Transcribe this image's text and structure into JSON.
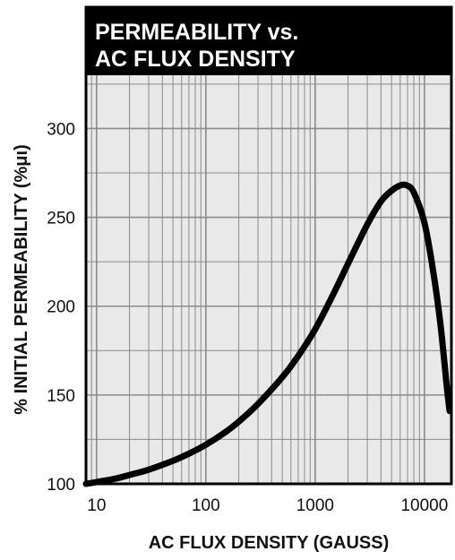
{
  "chart_data": {
    "type": "line",
    "title_lines": [
      "PERMEABILITY vs.",
      "AC FLUX DENSITY"
    ],
    "xlabel": "AC FLUX DENSITY (GAUSS)",
    "ylabel": "% INITIAL PERMEABILITY (%μι)",
    "x_scale": "log",
    "xlim": [
      8,
      17000
    ],
    "ylim": [
      100,
      330
    ],
    "x_ticks": [
      10,
      100,
      1000,
      10000
    ],
    "x_tick_labels": [
      "10",
      "100",
      "1000",
      "10000"
    ],
    "y_ticks": [
      100,
      150,
      200,
      250,
      300
    ],
    "y_tick_labels": [
      "100",
      "150",
      "200",
      "250",
      "300"
    ],
    "grid": true,
    "series": [
      {
        "x": [
          8,
          10,
          15,
          20,
          30,
          50,
          70,
          100,
          150,
          200,
          300,
          500,
          700,
          1000,
          1500,
          2000,
          3000,
          4000,
          5000,
          6000,
          6900,
          8000,
          10000,
          12000,
          14000,
          16000,
          17000
        ],
        "y": [
          100,
          101,
          103,
          105,
          108,
          113,
          117,
          122,
          129,
          135,
          145,
          160,
          172,
          187,
          208,
          224,
          246,
          259,
          265,
          268,
          268,
          264,
          247,
          220,
          190,
          155,
          141
        ]
      }
    ]
  },
  "colors": {
    "background": "#ffffff",
    "plot_background": "#e9e9e9",
    "grid": "#8a8a8a",
    "line": "#000000",
    "title_bar": "#000000",
    "title_text": "#ffffff"
  }
}
